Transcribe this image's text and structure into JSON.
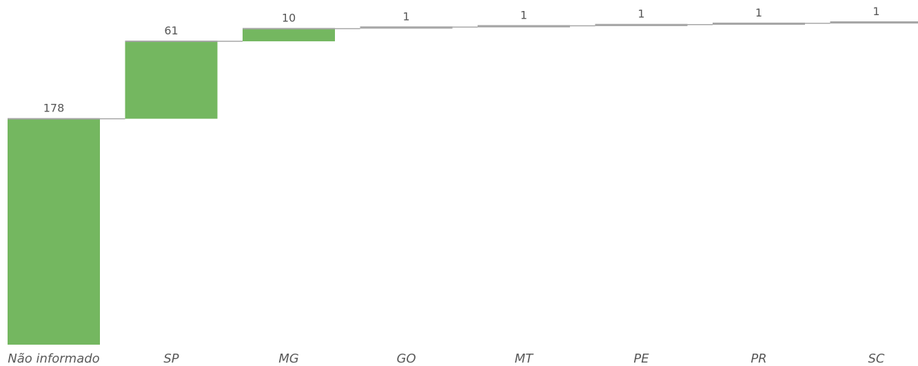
{
  "chart_data": {
    "type": "bar",
    "subtype": "waterfall",
    "title": "",
    "xlabel": "",
    "ylabel": "",
    "categories": [
      "Não informado",
      "SP",
      "MG",
      "GO",
      "MT",
      "PE",
      "PR",
      "SC"
    ],
    "values": [
      178,
      61,
      10,
      1,
      1,
      1,
      1,
      1
    ],
    "value_labels": [
      "178",
      "61",
      "10",
      "1",
      "1",
      "1",
      "1",
      "1"
    ],
    "ylim": [
      0,
      255
    ],
    "grid": false,
    "legend": "none",
    "colors": {
      "bar": "#74b760",
      "connector": "#a6a6a6",
      "value_text": "#555555",
      "category_text": "#595959"
    }
  }
}
